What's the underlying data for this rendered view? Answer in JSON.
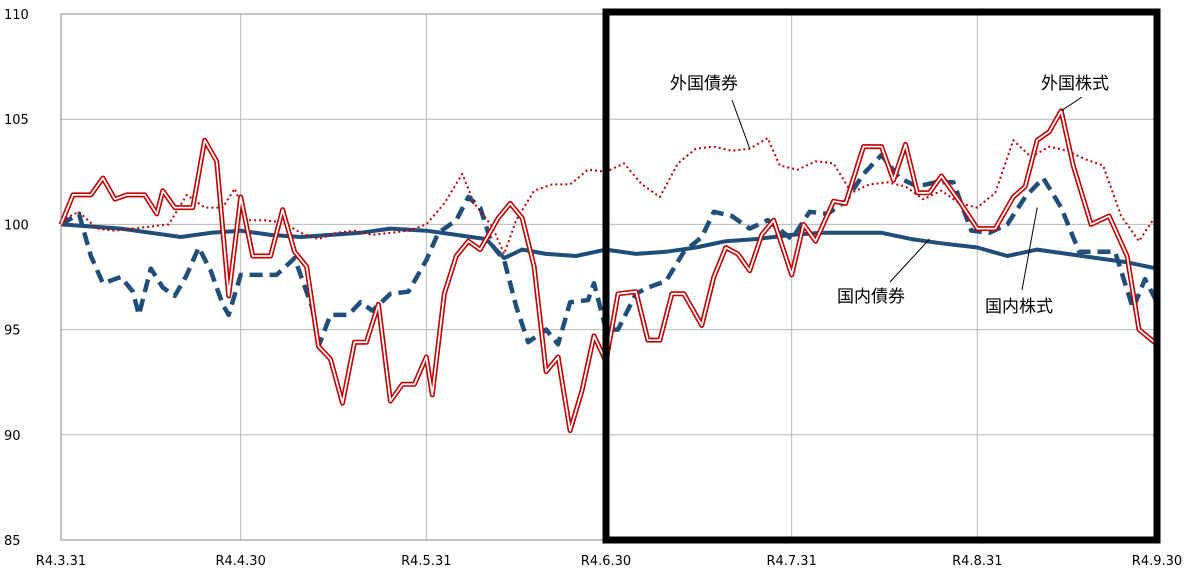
{
  "chart_data": {
    "type": "line",
    "title": "",
    "xlabel": "",
    "ylabel": "",
    "ylim": [
      85,
      110
    ],
    "yticks": [
      85,
      90,
      95,
      100,
      105,
      110
    ],
    "grid": true,
    "legend": "none (series labeled by callouts)",
    "x_range": [
      "2022-03-31",
      "2022-09-30"
    ],
    "xtick_labels": [
      "R4.3.31",
      "R4.4.30",
      "R4.5.31",
      "R4.6.30",
      "R4.7.31",
      "R4.8.31",
      "R4.9.30"
    ],
    "xtick_dates": [
      "2022-03-31",
      "2022-04-30",
      "2022-05-31",
      "2022-06-30",
      "2022-07-31",
      "2022-08-31",
      "2022-09-30"
    ],
    "highlight_box": {
      "from": "2022-06-30",
      "to": "2022-09-30"
    },
    "series": [
      {
        "name": "国内債券",
        "style": "solid-thick",
        "color": "#1f4e79",
        "points": [
          [
            "2022-03-31",
            100.0
          ],
          [
            "2022-04-05",
            99.9
          ],
          [
            "2022-04-10",
            99.8
          ],
          [
            "2022-04-15",
            99.6
          ],
          [
            "2022-04-20",
            99.4
          ],
          [
            "2022-04-25",
            99.6
          ],
          [
            "2022-04-30",
            99.7
          ],
          [
            "2022-05-05",
            99.5
          ],
          [
            "2022-05-10",
            99.4
          ],
          [
            "2022-05-15",
            99.5
          ],
          [
            "2022-05-20",
            99.6
          ],
          [
            "2022-05-25",
            99.8
          ],
          [
            "2022-05-31",
            99.7
          ],
          [
            "2022-06-05",
            99.5
          ],
          [
            "2022-06-10",
            99.3
          ],
          [
            "2022-06-13",
            98.4
          ],
          [
            "2022-06-16",
            98.8
          ],
          [
            "2022-06-20",
            98.6
          ],
          [
            "2022-06-25",
            98.5
          ],
          [
            "2022-06-30",
            98.8
          ],
          [
            "2022-07-05",
            98.6
          ],
          [
            "2022-07-10",
            98.7
          ],
          [
            "2022-07-15",
            98.9
          ],
          [
            "2022-07-20",
            99.2
          ],
          [
            "2022-07-25",
            99.3
          ],
          [
            "2022-07-31",
            99.5
          ],
          [
            "2022-08-05",
            99.6
          ],
          [
            "2022-08-10",
            99.6
          ],
          [
            "2022-08-15",
            99.6
          ],
          [
            "2022-08-20",
            99.3
          ],
          [
            "2022-08-25",
            99.1
          ],
          [
            "2022-08-31",
            98.9
          ],
          [
            "2022-09-05",
            98.5
          ],
          [
            "2022-09-10",
            98.8
          ],
          [
            "2022-09-15",
            98.6
          ],
          [
            "2022-09-20",
            98.4
          ],
          [
            "2022-09-25",
            98.2
          ],
          [
            "2022-09-30",
            97.9
          ]
        ]
      },
      {
        "name": "国内株式",
        "style": "dashed-thick",
        "color": "#1f4e79",
        "points": [
          [
            "2022-03-31",
            100.0
          ],
          [
            "2022-04-03",
            100.5
          ],
          [
            "2022-04-05",
            98.5
          ],
          [
            "2022-04-07",
            97.2
          ],
          [
            "2022-04-10",
            97.5
          ],
          [
            "2022-04-12",
            96.8
          ],
          [
            "2022-04-13",
            95.7
          ],
          [
            "2022-04-15",
            97.9
          ],
          [
            "2022-04-17",
            97.0
          ],
          [
            "2022-04-19",
            96.6
          ],
          [
            "2022-04-21",
            97.6
          ],
          [
            "2022-04-23",
            98.9
          ],
          [
            "2022-04-25",
            97.8
          ],
          [
            "2022-04-27",
            96.2
          ],
          [
            "2022-04-28",
            95.7
          ],
          [
            "2022-04-30",
            97.6
          ],
          [
            "2022-05-03",
            97.6
          ],
          [
            "2022-05-06",
            97.6
          ],
          [
            "2022-05-09",
            98.4
          ],
          [
            "2022-05-12",
            96.0
          ],
          [
            "2022-05-13",
            94.2
          ],
          [
            "2022-05-15",
            95.7
          ],
          [
            "2022-05-18",
            95.7
          ],
          [
            "2022-05-20",
            96.3
          ],
          [
            "2022-05-22",
            95.9
          ],
          [
            "2022-05-25",
            96.7
          ],
          [
            "2022-05-28",
            96.8
          ],
          [
            "2022-05-31",
            98.3
          ],
          [
            "2022-06-02",
            99.6
          ],
          [
            "2022-06-05",
            100.2
          ],
          [
            "2022-06-07",
            101.3
          ],
          [
            "2022-06-09",
            100.8
          ],
          [
            "2022-06-11",
            99.0
          ],
          [
            "2022-06-13",
            98.3
          ],
          [
            "2022-06-15",
            96.1
          ],
          [
            "2022-06-17",
            94.4
          ],
          [
            "2022-06-20",
            95.0
          ],
          [
            "2022-06-22",
            94.3
          ],
          [
            "2022-06-24",
            96.3
          ],
          [
            "2022-06-27",
            96.4
          ],
          [
            "2022-06-28",
            97.2
          ],
          [
            "2022-06-30",
            95.0
          ],
          [
            "2022-07-02",
            95.0
          ],
          [
            "2022-07-05",
            96.7
          ],
          [
            "2022-07-07",
            97.0
          ],
          [
            "2022-07-10",
            97.3
          ],
          [
            "2022-07-13",
            98.7
          ],
          [
            "2022-07-16",
            99.4
          ],
          [
            "2022-07-18",
            100.6
          ],
          [
            "2022-07-21",
            100.4
          ],
          [
            "2022-07-24",
            99.8
          ],
          [
            "2022-07-27",
            100.2
          ],
          [
            "2022-07-31",
            99.3
          ],
          [
            "2022-08-03",
            100.6
          ],
          [
            "2022-08-06",
            100.5
          ],
          [
            "2022-08-09",
            101.1
          ],
          [
            "2022-08-12",
            102.4
          ],
          [
            "2022-08-15",
            103.3
          ],
          [
            "2022-08-18",
            102.2
          ],
          [
            "2022-08-21",
            101.8
          ],
          [
            "2022-08-24",
            102.0
          ],
          [
            "2022-08-27",
            102.0
          ],
          [
            "2022-08-30",
            99.7
          ],
          [
            "2022-09-02",
            99.6
          ],
          [
            "2022-09-05",
            100.0
          ],
          [
            "2022-09-08",
            101.3
          ],
          [
            "2022-09-11",
            102.2
          ],
          [
            "2022-09-14",
            100.8
          ],
          [
            "2022-09-17",
            98.7
          ],
          [
            "2022-09-20",
            98.7
          ],
          [
            "2022-09-23",
            98.7
          ],
          [
            "2022-09-26",
            96.0
          ],
          [
            "2022-09-28",
            97.4
          ],
          [
            "2022-09-30",
            96.3
          ]
        ]
      },
      {
        "name": "外国債券",
        "style": "dotted",
        "color": "#c00000",
        "points": [
          [
            "2022-03-31",
            100.2
          ],
          [
            "2022-04-03",
            100.6
          ],
          [
            "2022-04-06",
            99.8
          ],
          [
            "2022-04-09",
            99.7
          ],
          [
            "2022-04-12",
            99.8
          ],
          [
            "2022-04-15",
            99.9
          ],
          [
            "2022-04-18",
            100.0
          ],
          [
            "2022-04-21",
            101.4
          ],
          [
            "2022-04-24",
            100.8
          ],
          [
            "2022-04-27",
            100.8
          ],
          [
            "2022-04-29",
            101.7
          ],
          [
            "2022-05-01",
            100.2
          ],
          [
            "2022-05-04",
            100.2
          ],
          [
            "2022-05-07",
            100.1
          ],
          [
            "2022-05-10",
            99.6
          ],
          [
            "2022-05-13",
            99.3
          ],
          [
            "2022-05-16",
            99.6
          ],
          [
            "2022-05-19",
            99.7
          ],
          [
            "2022-05-22",
            99.5
          ],
          [
            "2022-05-25",
            99.6
          ],
          [
            "2022-05-28",
            99.7
          ],
          [
            "2022-05-31",
            100.0
          ],
          [
            "2022-06-03",
            101.0
          ],
          [
            "2022-06-06",
            102.4
          ],
          [
            "2022-06-08",
            101.0
          ],
          [
            "2022-06-11",
            99.9
          ],
          [
            "2022-06-13",
            98.6
          ],
          [
            "2022-06-15",
            100.2
          ],
          [
            "2022-06-18",
            101.6
          ],
          [
            "2022-06-21",
            101.9
          ],
          [
            "2022-06-24",
            101.9
          ],
          [
            "2022-06-27",
            102.6
          ],
          [
            "2022-06-30",
            102.5
          ],
          [
            "2022-07-03",
            102.9
          ],
          [
            "2022-07-06",
            101.9
          ],
          [
            "2022-07-09",
            101.3
          ],
          [
            "2022-07-12",
            102.9
          ],
          [
            "2022-07-15",
            103.6
          ],
          [
            "2022-07-18",
            103.7
          ],
          [
            "2022-07-21",
            103.5
          ],
          [
            "2022-07-24",
            103.6
          ],
          [
            "2022-07-27",
            104.1
          ],
          [
            "2022-07-29",
            102.8
          ],
          [
            "2022-08-01",
            102.6
          ],
          [
            "2022-08-04",
            103.0
          ],
          [
            "2022-08-07",
            102.9
          ],
          [
            "2022-08-10",
            101.5
          ],
          [
            "2022-08-13",
            101.9
          ],
          [
            "2022-08-16",
            102.0
          ],
          [
            "2022-08-19",
            101.8
          ],
          [
            "2022-08-22",
            101.2
          ],
          [
            "2022-08-25",
            101.6
          ],
          [
            "2022-08-28",
            101.0
          ],
          [
            "2022-08-31",
            100.8
          ],
          [
            "2022-09-03",
            101.5
          ],
          [
            "2022-09-06",
            104.0
          ],
          [
            "2022-09-09",
            103.2
          ],
          [
            "2022-09-12",
            103.7
          ],
          [
            "2022-09-15",
            103.5
          ],
          [
            "2022-09-18",
            103.1
          ],
          [
            "2022-09-21",
            102.8
          ],
          [
            "2022-09-24",
            100.4
          ],
          [
            "2022-09-27",
            99.2
          ],
          [
            "2022-09-30",
            100.5
          ]
        ]
      },
      {
        "name": "外国株式",
        "style": "double-line",
        "color": "#c00000",
        "points": [
          [
            "2022-03-31",
            100.0
          ],
          [
            "2022-04-02",
            101.4
          ],
          [
            "2022-04-05",
            101.4
          ],
          [
            "2022-04-07",
            102.2
          ],
          [
            "2022-04-09",
            101.2
          ],
          [
            "2022-04-11",
            101.4
          ],
          [
            "2022-04-14",
            101.4
          ],
          [
            "2022-04-16",
            100.5
          ],
          [
            "2022-04-17",
            101.6
          ],
          [
            "2022-04-19",
            100.8
          ],
          [
            "2022-04-22",
            100.8
          ],
          [
            "2022-04-24",
            104.0
          ],
          [
            "2022-04-26",
            103.0
          ],
          [
            "2022-04-28",
            96.6
          ],
          [
            "2022-04-30",
            101.3
          ],
          [
            "2022-05-02",
            98.5
          ],
          [
            "2022-05-05",
            98.5
          ],
          [
            "2022-05-07",
            100.7
          ],
          [
            "2022-05-09",
            98.7
          ],
          [
            "2022-05-11",
            98.0
          ],
          [
            "2022-05-13",
            94.2
          ],
          [
            "2022-05-15",
            93.6
          ],
          [
            "2022-05-17",
            91.5
          ],
          [
            "2022-05-19",
            94.4
          ],
          [
            "2022-05-21",
            94.4
          ],
          [
            "2022-05-23",
            96.2
          ],
          [
            "2022-05-25",
            91.6
          ],
          [
            "2022-05-27",
            92.4
          ],
          [
            "2022-05-29",
            92.4
          ],
          [
            "2022-05-31",
            93.7
          ],
          [
            "2022-06-01",
            91.9
          ],
          [
            "2022-06-03",
            96.7
          ],
          [
            "2022-06-05",
            98.5
          ],
          [
            "2022-06-07",
            99.2
          ],
          [
            "2022-06-09",
            98.8
          ],
          [
            "2022-06-12",
            100.3
          ],
          [
            "2022-06-14",
            101.0
          ],
          [
            "2022-06-16",
            100.3
          ],
          [
            "2022-06-18",
            98.0
          ],
          [
            "2022-06-20",
            93.0
          ],
          [
            "2022-06-22",
            93.7
          ],
          [
            "2022-06-24",
            90.2
          ],
          [
            "2022-06-26",
            92.1
          ],
          [
            "2022-06-28",
            94.7
          ],
          [
            "2022-06-30",
            93.5
          ],
          [
            "2022-07-02",
            96.7
          ],
          [
            "2022-07-05",
            96.8
          ],
          [
            "2022-07-07",
            94.5
          ],
          [
            "2022-07-09",
            94.5
          ],
          [
            "2022-07-11",
            96.7
          ],
          [
            "2022-07-13",
            96.7
          ],
          [
            "2022-07-16",
            95.2
          ],
          [
            "2022-07-18",
            97.5
          ],
          [
            "2022-07-20",
            98.9
          ],
          [
            "2022-07-22",
            98.6
          ],
          [
            "2022-07-24",
            97.8
          ],
          [
            "2022-07-26",
            99.5
          ],
          [
            "2022-07-28",
            100.2
          ],
          [
            "2022-07-31",
            97.6
          ],
          [
            "2022-08-02",
            100.0
          ],
          [
            "2022-08-04",
            99.2
          ],
          [
            "2022-08-07",
            101.1
          ],
          [
            "2022-08-09",
            101.0
          ],
          [
            "2022-08-12",
            103.7
          ],
          [
            "2022-08-15",
            103.7
          ],
          [
            "2022-08-17",
            102.1
          ],
          [
            "2022-08-19",
            103.8
          ],
          [
            "2022-08-21",
            101.5
          ],
          [
            "2022-08-23",
            101.5
          ],
          [
            "2022-08-25",
            102.3
          ],
          [
            "2022-08-28",
            101.1
          ],
          [
            "2022-08-31",
            99.8
          ],
          [
            "2022-09-03",
            99.8
          ],
          [
            "2022-09-06",
            101.3
          ],
          [
            "2022-09-08",
            101.8
          ],
          [
            "2022-09-10",
            104.0
          ],
          [
            "2022-09-12",
            104.4
          ],
          [
            "2022-09-14",
            105.4
          ],
          [
            "2022-09-16",
            102.8
          ],
          [
            "2022-09-19",
            100.0
          ],
          [
            "2022-09-22",
            100.4
          ],
          [
            "2022-09-25",
            98.5
          ],
          [
            "2022-09-27",
            95.0
          ],
          [
            "2022-09-30",
            94.3
          ]
        ]
      }
    ],
    "annotations": [
      {
        "text": "外国債券",
        "series": "外国債券",
        "point": [
          "2022-07-24",
          103.6
        ]
      },
      {
        "text": "外国株式",
        "series": "外国株式",
        "point": [
          "2022-09-14",
          105.4
        ]
      },
      {
        "text": "国内債券",
        "series": "国内債券",
        "point": [
          "2022-08-23",
          99.3
        ]
      },
      {
        "text": "国内株式",
        "series": "国内株式",
        "point": [
          "2022-09-10",
          100.8
        ]
      }
    ]
  }
}
